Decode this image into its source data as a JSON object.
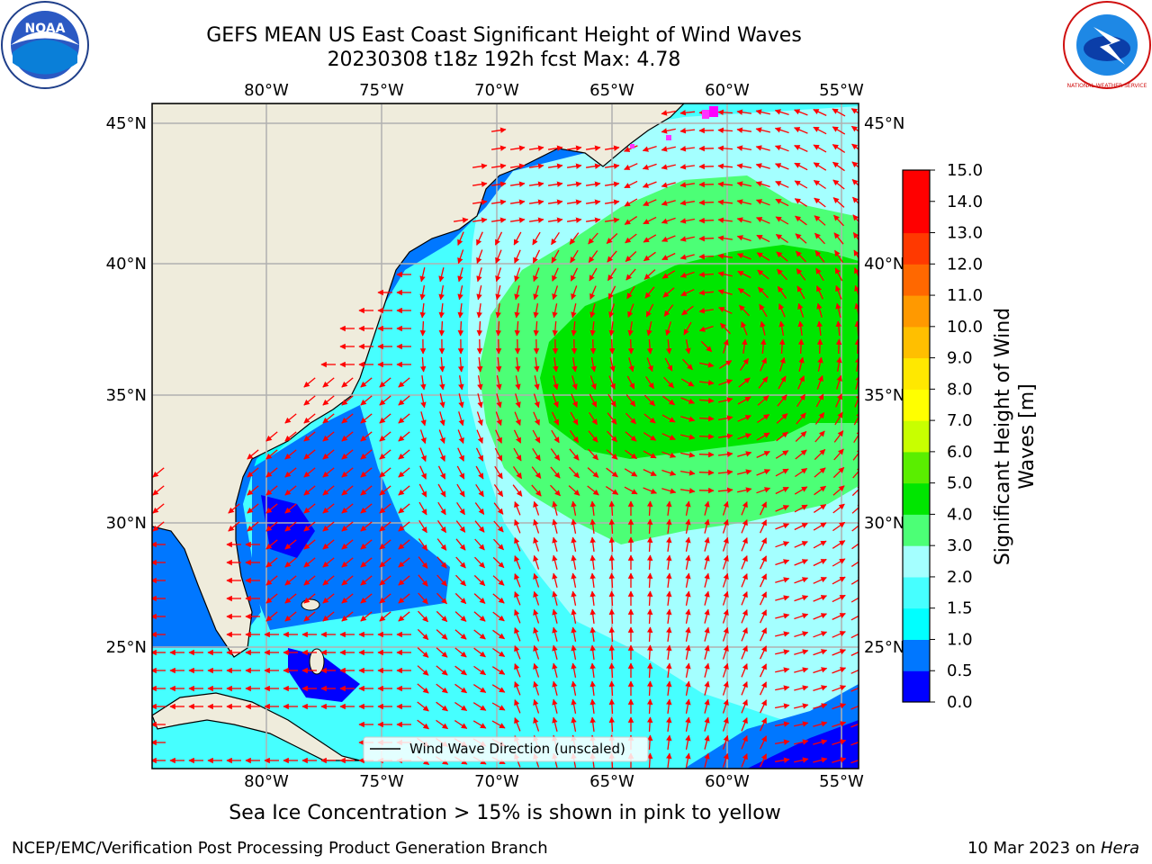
{
  "title": {
    "line1": "GEFS MEAN US East Coast Significant Height of Wind Waves",
    "line2": "20230308 t18z 192h fcst   Max: 4.78"
  },
  "map": {
    "lon_ticks": [
      "80°W",
      "75°W",
      "70°W",
      "65°W",
      "60°W",
      "55°W"
    ],
    "lat_ticks": [
      "45°N",
      "40°N",
      "35°N",
      "30°N",
      "25°N"
    ],
    "legend_label": "Wind Wave Direction (unscaled)",
    "arrow_color": "#ff0000",
    "land_color": "#efecdc"
  },
  "colorbar": {
    "label_line1": "Significant Height of Wind",
    "label_line2": "Waves [m]",
    "ticks": [
      "0.0",
      "0.5",
      "1.0",
      "1.5",
      "2.0",
      "3.0",
      "4.0",
      "5.0",
      "6.0",
      "7.0",
      "8.0",
      "9.0",
      "10.0",
      "11.0",
      "12.0",
      "13.0",
      "14.0",
      "15.0"
    ],
    "colors": [
      "#0000ff",
      "#0077ff",
      "#00ffff",
      "#46ffff",
      "#a4ffff",
      "#4cff76",
      "#00e600",
      "#5aee00",
      "#c8ff00",
      "#ffff00",
      "#ffe800",
      "#ffbf00",
      "#ff9900",
      "#ff6800",
      "#ff3900",
      "#ff0000",
      "#ff0000"
    ]
  },
  "sea_ice_note": "Sea Ice Concentration > 15% is shown in pink to yellow",
  "footer": {
    "left": "NCEP/EMC/Verification Post Processing Product Generation Branch",
    "right_prefix": "10 Mar 2023 on ",
    "right_machine": "Hera"
  },
  "logos": {
    "left_text": "NOAA",
    "right_text": "NATIONAL WEATHER SERVICE"
  }
}
